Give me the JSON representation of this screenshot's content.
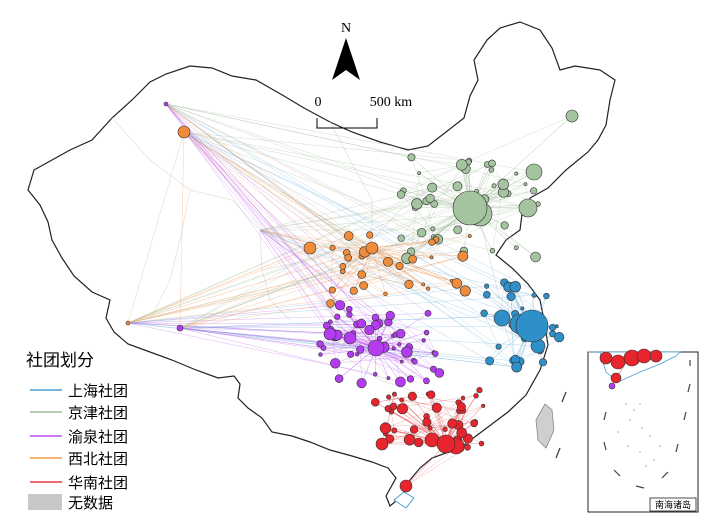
{
  "north_arrow": {
    "label": "N"
  },
  "scale_bar": {
    "zero_label": "0",
    "distance_label": "500 km"
  },
  "legend": {
    "title": "社团划分",
    "items": [
      {
        "label": "上海社团",
        "color": "#4a9fd1"
      },
      {
        "label": "京津社团",
        "color": "#9bbf95"
      },
      {
        "label": "渝泉社团",
        "color": "#b84cf0"
      },
      {
        "label": "西北社团",
        "color": "#f09a45"
      },
      {
        "label": "华南社团",
        "color": "#e8383d"
      }
    ],
    "no_data": {
      "label": "无数据",
      "color": "#c8c8c8"
    }
  },
  "inset": {
    "label": "南海诸岛"
  },
  "communities": {
    "shanghai": {
      "color": "#2e8fc9",
      "line": "#6fb2dc"
    },
    "jingjin": {
      "color": "#a4c49f",
      "line": "#9fbc99"
    },
    "yuquan": {
      "color": "#b43cf0",
      "line": "#c264ee"
    },
    "xibei": {
      "color": "#f08c3a",
      "line": "#efa062"
    },
    "huanan": {
      "color": "#e8242c",
      "line": "#e4575c"
    }
  }
}
